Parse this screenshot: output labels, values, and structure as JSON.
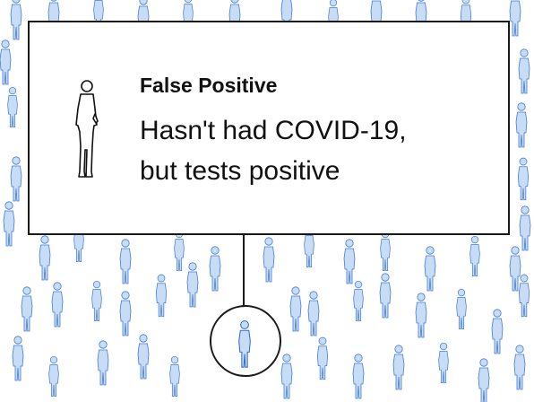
{
  "callout": {
    "label": "False Positive",
    "description_line1": "Hasn't had COVID-19,",
    "description_line2": "but tests positive"
  },
  "colors": {
    "crowd_fill": "#c9dcf5",
    "crowd_stroke": "#3f7bd9",
    "highlight_fill": "#c9dcf5",
    "highlight_stroke": "#2d6fd6",
    "border": "#1a1a1a",
    "text": "#111111"
  },
  "icons": {
    "crowd_person": "person-silhouette-icon",
    "callout_person": "person-silhouette-icon",
    "highlighted_person": "person-silhouette-icon"
  }
}
